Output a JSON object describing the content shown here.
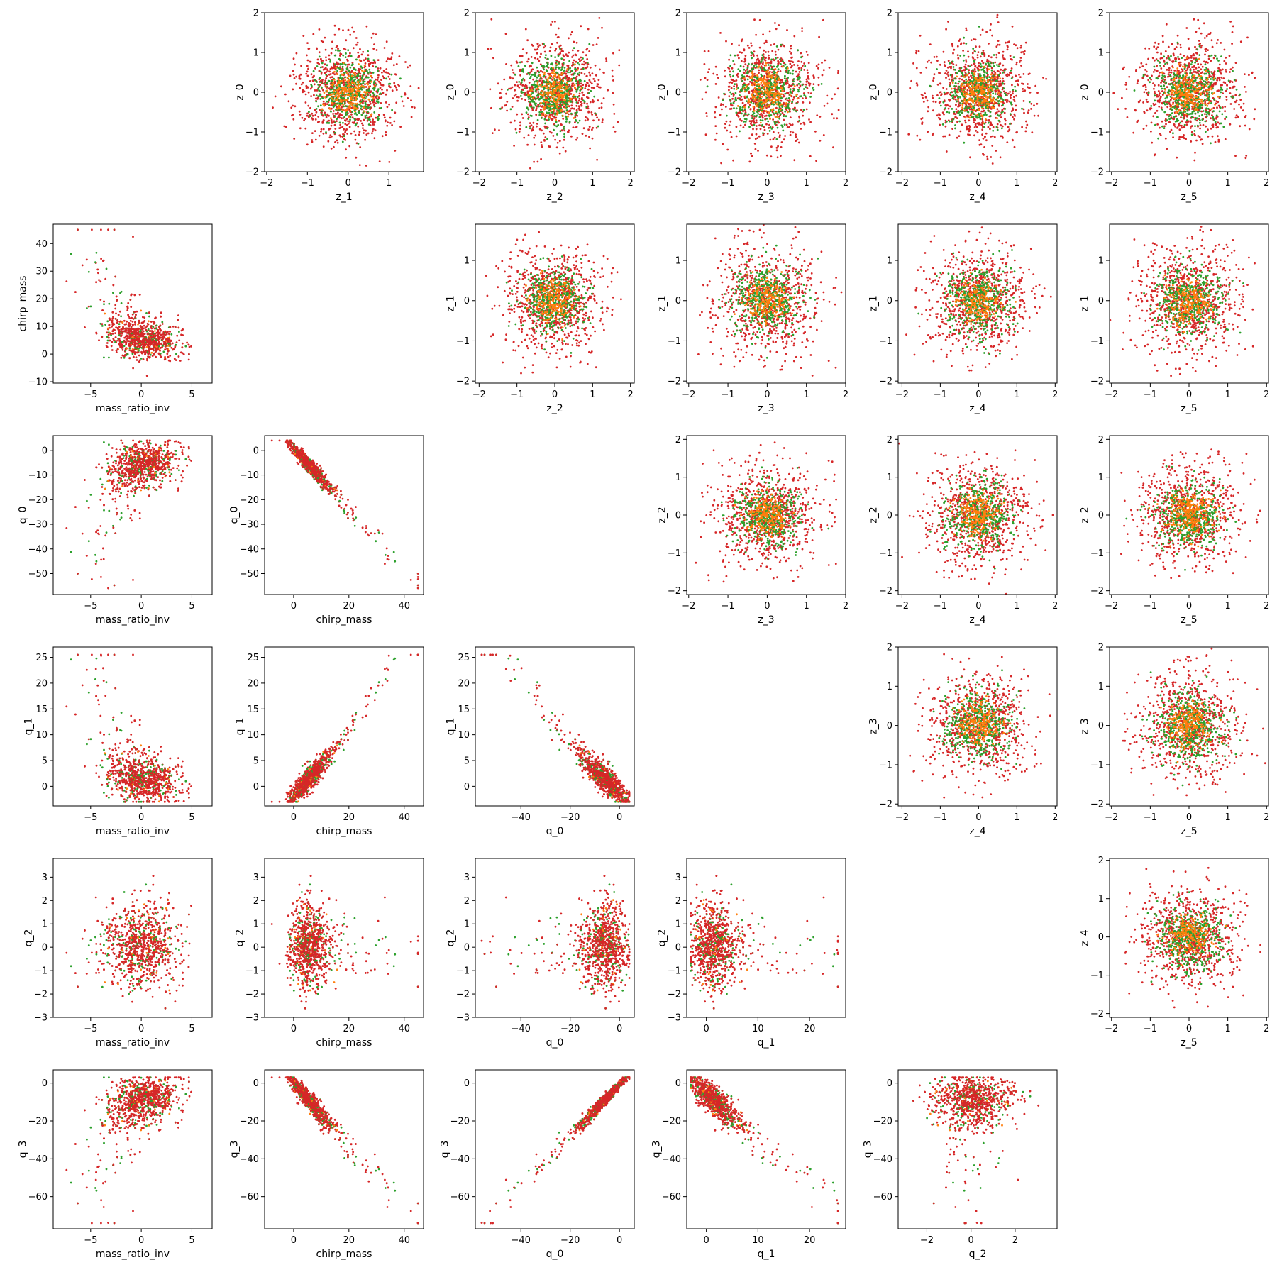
{
  "figure": {
    "type": "scatter-matrix",
    "grid_rows": 6,
    "grid_cols": 6,
    "point_colors": [
      "#d62728",
      "#2ca02c",
      "#ff7f0e",
      "#d62728"
    ]
  },
  "chart_data": [
    {
      "type": "scatter",
      "row": 0,
      "col": 1,
      "xlabel": "z_1",
      "ylabel": "z_0",
      "xlim": [
        -2.05,
        1.85
      ],
      "ylim": [
        -2.0,
        2.0
      ],
      "xticks": [
        -2,
        -1,
        0,
        1
      ],
      "yticks": [
        -2,
        -1,
        0,
        1,
        2
      ],
      "kind": "gauss",
      "params": {
        "mx": 0,
        "my": 0,
        "sx": 0.75,
        "sy": 0.75
      }
    },
    {
      "type": "scatter",
      "row": 0,
      "col": 2,
      "xlabel": "z_2",
      "ylabel": "z_0",
      "xlim": [
        -2.1,
        2.1
      ],
      "ylim": [
        -2.0,
        2.0
      ],
      "xticks": [
        -2,
        -1,
        0,
        1,
        2
      ],
      "yticks": [
        -2,
        -1,
        0,
        1,
        2
      ],
      "kind": "gauss",
      "params": {
        "mx": 0,
        "my": 0,
        "sx": 0.75,
        "sy": 0.75
      }
    },
    {
      "type": "scatter",
      "row": 0,
      "col": 3,
      "xlabel": "z_3",
      "ylabel": "z_0",
      "xlim": [
        -2.05,
        2.0
      ],
      "ylim": [
        -2.0,
        2.0
      ],
      "xticks": [
        -2,
        -1,
        0,
        1,
        2
      ],
      "yticks": [
        -2,
        -1,
        0,
        1,
        2
      ],
      "kind": "gauss",
      "params": {
        "mx": 0,
        "my": 0,
        "sx": 0.75,
        "sy": 0.75
      }
    },
    {
      "type": "scatter",
      "row": 0,
      "col": 4,
      "xlabel": "z_4",
      "ylabel": "z_0",
      "xlim": [
        -2.1,
        2.05
      ],
      "ylim": [
        -2.0,
        2.0
      ],
      "xticks": [
        -2,
        -1,
        0,
        1,
        2
      ],
      "yticks": [
        -2,
        -1,
        0,
        1,
        2
      ],
      "kind": "gauss",
      "params": {
        "mx": 0,
        "my": 0,
        "sx": 0.75,
        "sy": 0.75
      }
    },
    {
      "type": "scatter",
      "row": 0,
      "col": 5,
      "xlabel": "z_5",
      "ylabel": "z_0",
      "xlim": [
        -2.05,
        2.05
      ],
      "ylim": [
        -2.0,
        2.0
      ],
      "xticks": [
        -2,
        -1,
        0,
        1,
        2
      ],
      "yticks": [
        -2,
        -1,
        0,
        1,
        2
      ],
      "kind": "gauss",
      "params": {
        "mx": 0,
        "my": 0,
        "sx": 0.75,
        "sy": 0.75
      }
    },
    {
      "type": "scatter",
      "row": 1,
      "col": 0,
      "xlabel": "mass_ratio_inv",
      "ylabel": "chirp_mass",
      "xlim": [
        -8.7,
        7.0
      ],
      "ylim": [
        -10.5,
        47.0
      ],
      "xticks": [
        -5,
        0,
        5
      ],
      "yticks": [
        -10,
        0,
        10,
        20,
        30,
        40
      ],
      "kind": "chirpvsm",
      "params": {}
    },
    {
      "type": "scatter",
      "row": 1,
      "col": 2,
      "xlabel": "z_2",
      "ylabel": "z_1",
      "xlim": [
        -2.1,
        2.1
      ],
      "ylim": [
        -2.05,
        1.9
      ],
      "xticks": [
        -2,
        -1,
        0,
        1,
        2
      ],
      "yticks": [
        -2,
        -1,
        0,
        1
      ],
      "kind": "gauss",
      "params": {
        "mx": 0,
        "my": 0,
        "sx": 0.75,
        "sy": 0.75
      }
    },
    {
      "type": "scatter",
      "row": 1,
      "col": 3,
      "xlabel": "z_3",
      "ylabel": "z_1",
      "xlim": [
        -2.05,
        2.0
      ],
      "ylim": [
        -2.05,
        1.9
      ],
      "xticks": [
        -2,
        -1,
        0,
        1,
        2
      ],
      "yticks": [
        -2,
        -1,
        0,
        1
      ],
      "kind": "gauss",
      "params": {
        "mx": 0,
        "my": 0,
        "sx": 0.75,
        "sy": 0.75
      }
    },
    {
      "type": "scatter",
      "row": 1,
      "col": 4,
      "xlabel": "z_4",
      "ylabel": "z_1",
      "xlim": [
        -2.1,
        2.05
      ],
      "ylim": [
        -2.05,
        1.9
      ],
      "xticks": [
        -2,
        -1,
        0,
        1,
        2
      ],
      "yticks": [
        -2,
        -1,
        0,
        1
      ],
      "kind": "gauss",
      "params": {
        "mx": 0,
        "my": 0,
        "sx": 0.75,
        "sy": 0.75
      }
    },
    {
      "type": "scatter",
      "row": 1,
      "col": 5,
      "xlabel": "z_5",
      "ylabel": "z_1",
      "xlim": [
        -2.05,
        2.05
      ],
      "ylim": [
        -2.05,
        1.9
      ],
      "xticks": [
        -2,
        -1,
        0,
        1,
        2
      ],
      "yticks": [
        -2,
        -1,
        0,
        1
      ],
      "kind": "gauss",
      "params": {
        "mx": 0,
        "my": 0,
        "sx": 0.75,
        "sy": 0.75
      }
    },
    {
      "type": "scatter",
      "row": 2,
      "col": 0,
      "xlabel": "mass_ratio_inv",
      "ylabel": "q_0",
      "xlim": [
        -8.7,
        7.0
      ],
      "ylim": [
        -58.5,
        6.0
      ],
      "xticks": [
        -5,
        0,
        5
      ],
      "yticks": [
        -50,
        -40,
        -30,
        -20,
        -10,
        0
      ],
      "kind": "q0vsm",
      "params": {}
    },
    {
      "type": "scatter",
      "row": 2,
      "col": 1,
      "xlabel": "chirp_mass",
      "ylabel": "q_0",
      "xlim": [
        -10.5,
        47.0
      ],
      "ylim": [
        -58.5,
        6.0
      ],
      "xticks": [
        0,
        20,
        40
      ],
      "yticks": [
        -50,
        -40,
        -30,
        -20,
        -10,
        0
      ],
      "kind": "q0vschirp",
      "params": {}
    },
    {
      "type": "scatter",
      "row": 2,
      "col": 3,
      "xlabel": "z_3",
      "ylabel": "z_2",
      "xlim": [
        -2.05,
        2.0
      ],
      "ylim": [
        -2.1,
        2.1
      ],
      "xticks": [
        -2,
        -1,
        0,
        1,
        2
      ],
      "yticks": [
        -2,
        -1,
        0,
        1,
        2
      ],
      "kind": "gauss",
      "params": {
        "mx": 0,
        "my": 0,
        "sx": 0.75,
        "sy": 0.75
      }
    },
    {
      "type": "scatter",
      "row": 2,
      "col": 4,
      "xlabel": "z_4",
      "ylabel": "z_2",
      "xlim": [
        -2.1,
        2.05
      ],
      "ylim": [
        -2.1,
        2.1
      ],
      "xticks": [
        -2,
        -1,
        0,
        1,
        2
      ],
      "yticks": [
        -2,
        -1,
        0,
        1,
        2
      ],
      "kind": "gauss",
      "params": {
        "mx": 0,
        "my": 0,
        "sx": 0.75,
        "sy": 0.75
      }
    },
    {
      "type": "scatter",
      "row": 2,
      "col": 5,
      "xlabel": "z_5",
      "ylabel": "z_2",
      "xlim": [
        -2.05,
        2.05
      ],
      "ylim": [
        -2.1,
        2.1
      ],
      "xticks": [
        -2,
        -1,
        0,
        1,
        2
      ],
      "yticks": [
        -2,
        -1,
        0,
        1,
        2
      ],
      "kind": "gauss",
      "params": {
        "mx": 0,
        "my": 0,
        "sx": 0.75,
        "sy": 0.75
      }
    },
    {
      "type": "scatter",
      "row": 3,
      "col": 0,
      "xlabel": "mass_ratio_inv",
      "ylabel": "q_1",
      "xlim": [
        -8.7,
        7.0
      ],
      "ylim": [
        -3.8,
        27.0
      ],
      "xticks": [
        -5,
        0,
        5
      ],
      "yticks": [
        0,
        5,
        10,
        15,
        20,
        25
      ],
      "kind": "q1vsm",
      "params": {}
    },
    {
      "type": "scatter",
      "row": 3,
      "col": 1,
      "xlabel": "chirp_mass",
      "ylabel": "q_1",
      "xlim": [
        -10.5,
        47.0
      ],
      "ylim": [
        -3.8,
        27.0
      ],
      "xticks": [
        0,
        20,
        40
      ],
      "yticks": [
        0,
        5,
        10,
        15,
        20,
        25
      ],
      "kind": "q1vschirp",
      "params": {}
    },
    {
      "type": "scatter",
      "row": 3,
      "col": 2,
      "xlabel": "q_0",
      "ylabel": "q_1",
      "xlim": [
        -58.5,
        6.0
      ],
      "ylim": [
        -3.8,
        27.0
      ],
      "xticks": [
        -40,
        -20,
        0
      ],
      "yticks": [
        0,
        5,
        10,
        15,
        20,
        25
      ],
      "kind": "q1vsq0",
      "params": {}
    },
    {
      "type": "scatter",
      "row": 3,
      "col": 4,
      "xlabel": "z_4",
      "ylabel": "z_3",
      "xlim": [
        -2.1,
        2.05
      ],
      "ylim": [
        -2.05,
        2.0
      ],
      "xticks": [
        -2,
        -1,
        0,
        1,
        2
      ],
      "yticks": [
        -2,
        -1,
        0,
        1,
        2
      ],
      "kind": "gauss",
      "params": {
        "mx": 0,
        "my": 0,
        "sx": 0.75,
        "sy": 0.75
      }
    },
    {
      "type": "scatter",
      "row": 3,
      "col": 5,
      "xlabel": "z_5",
      "ylabel": "z_3",
      "xlim": [
        -2.05,
        2.05
      ],
      "ylim": [
        -2.05,
        2.0
      ],
      "xticks": [
        -2,
        -1,
        0,
        1,
        2
      ],
      "yticks": [
        -2,
        -1,
        0,
        1,
        2
      ],
      "kind": "gauss",
      "params": {
        "mx": 0,
        "my": 0,
        "sx": 0.75,
        "sy": 0.75
      }
    },
    {
      "type": "scatter",
      "row": 4,
      "col": 0,
      "xlabel": "mass_ratio_inv",
      "ylabel": "q_2",
      "xlim": [
        -8.7,
        7.0
      ],
      "ylim": [
        -3.0,
        3.8
      ],
      "xticks": [
        -5,
        0,
        5
      ],
      "yticks": [
        -3,
        -2,
        -1,
        0,
        1,
        2,
        3
      ],
      "kind": "q2vsm",
      "params": {}
    },
    {
      "type": "scatter",
      "row": 4,
      "col": 1,
      "xlabel": "chirp_mass",
      "ylabel": "q_2",
      "xlim": [
        -10.5,
        47.0
      ],
      "ylim": [
        -3.0,
        3.8
      ],
      "xticks": [
        0,
        20,
        40
      ],
      "yticks": [
        -3,
        -2,
        -1,
        0,
        1,
        2,
        3
      ],
      "kind": "q2vschirp",
      "params": {}
    },
    {
      "type": "scatter",
      "row": 4,
      "col": 2,
      "xlabel": "q_0",
      "ylabel": "q_2",
      "xlim": [
        -58.5,
        6.0
      ],
      "ylim": [
        -3.0,
        3.8
      ],
      "xticks": [
        -40,
        -20,
        0
      ],
      "yticks": [
        -3,
        -2,
        -1,
        0,
        1,
        2,
        3
      ],
      "kind": "q2vsq0",
      "params": {}
    },
    {
      "type": "scatter",
      "row": 4,
      "col": 3,
      "xlabel": "q_1",
      "ylabel": "q_2",
      "xlim": [
        -3.8,
        27.0
      ],
      "ylim": [
        -3.0,
        3.8
      ],
      "xticks": [
        0,
        10,
        20
      ],
      "yticks": [
        -3,
        -2,
        -1,
        0,
        1,
        2,
        3
      ],
      "kind": "q2vsq1",
      "params": {}
    },
    {
      "type": "scatter",
      "row": 4,
      "col": 5,
      "xlabel": "z_5",
      "ylabel": "z_4",
      "xlim": [
        -2.05,
        2.05
      ],
      "ylim": [
        -2.1,
        2.05
      ],
      "xticks": [
        -2,
        -1,
        0,
        1,
        2
      ],
      "yticks": [
        -2,
        -1,
        0,
        1,
        2
      ],
      "kind": "gauss",
      "params": {
        "mx": 0,
        "my": 0,
        "sx": 0.75,
        "sy": 0.75
      }
    },
    {
      "type": "scatter",
      "row": 5,
      "col": 0,
      "xlabel": "mass_ratio_inv",
      "ylabel": "q_3",
      "xlim": [
        -8.7,
        7.0
      ],
      "ylim": [
        -77.0,
        7.0
      ],
      "xticks": [
        -5,
        0,
        5
      ],
      "yticks": [
        -60,
        -40,
        -20,
        0
      ],
      "kind": "q3vsm",
      "params": {}
    },
    {
      "type": "scatter",
      "row": 5,
      "col": 1,
      "xlabel": "chirp_mass",
      "ylabel": "q_3",
      "xlim": [
        -10.5,
        47.0
      ],
      "ylim": [
        -77.0,
        7.0
      ],
      "xticks": [
        0,
        20,
        40
      ],
      "yticks": [
        -60,
        -40,
        -20,
        0
      ],
      "kind": "q3vschirp",
      "params": {}
    },
    {
      "type": "scatter",
      "row": 5,
      "col": 2,
      "xlabel": "q_0",
      "ylabel": "q_3",
      "xlim": [
        -58.5,
        6.0
      ],
      "ylim": [
        -77.0,
        7.0
      ],
      "xticks": [
        -40,
        -20,
        0
      ],
      "yticks": [
        -60,
        -40,
        -20,
        0
      ],
      "kind": "q3vsq0",
      "params": {}
    },
    {
      "type": "scatter",
      "row": 5,
      "col": 3,
      "xlabel": "q_1",
      "ylabel": "q_3",
      "xlim": [
        -3.8,
        27.0
      ],
      "ylim": [
        -77.0,
        7.0
      ],
      "xticks": [
        0,
        10,
        20
      ],
      "yticks": [
        -60,
        -40,
        -20,
        0
      ],
      "kind": "q3vsq1",
      "params": {}
    },
    {
      "type": "scatter",
      "row": 5,
      "col": 4,
      "xlabel": "q_2",
      "ylabel": "q_3",
      "xlim": [
        -3.3,
        3.9
      ],
      "ylim": [
        -77.0,
        7.0
      ],
      "xticks": [
        -2,
        0,
        2
      ],
      "yticks": [
        -60,
        -40,
        -20,
        0
      ],
      "kind": "q3vsq2",
      "params": {}
    }
  ]
}
